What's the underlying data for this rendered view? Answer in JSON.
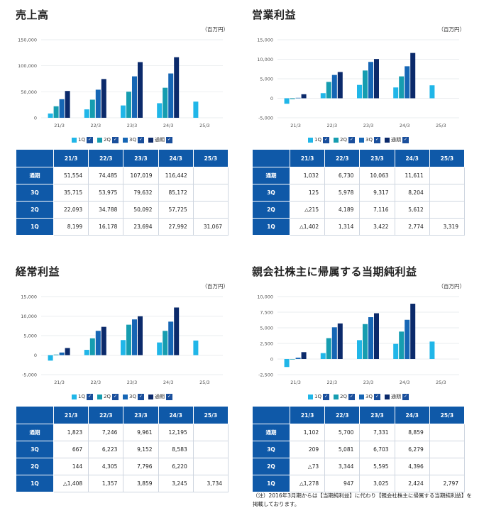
{
  "unit": "（百万円）",
  "legend": [
    "1Q",
    "2Q",
    "3Q",
    "通期"
  ],
  "series_colors": [
    "#20b6e8",
    "#169db0",
    "#1666b5",
    "#0b2a6b"
  ],
  "periods": [
    "21/3",
    "22/3",
    "23/3",
    "24/3",
    "25/3"
  ],
  "row_labels": [
    "通期",
    "3Q",
    "2Q",
    "1Q"
  ],
  "note": "（注）2016年3月期からは【当期純利益】に代わり【親会社株主に帰属する当期純利益】を掲載しております。",
  "chart_data": [
    {
      "type": "bar",
      "title": "売上高",
      "categories": [
        "21/3",
        "22/3",
        "23/3",
        "24/3",
        "25/3"
      ],
      "ylim": [
        0,
        150000
      ],
      "yticks": [
        0,
        50000,
        100000,
        150000
      ],
      "ytick_labels": [
        "0",
        "50,000",
        "100,000",
        "150,000"
      ],
      "series": [
        {
          "name": "1Q",
          "values": [
            8199,
            16178,
            23694,
            27992,
            31067
          ]
        },
        {
          "name": "2Q",
          "values": [
            22093,
            34788,
            50092,
            57725,
            null
          ]
        },
        {
          "name": "3Q",
          "values": [
            35715,
            53975,
            79632,
            85172,
            null
          ]
        },
        {
          "name": "通期",
          "values": [
            51554,
            74485,
            107019,
            116442,
            null
          ]
        }
      ],
      "table": [
        [
          "51,554",
          "74,485",
          "107,019",
          "116,442",
          ""
        ],
        [
          "35,715",
          "53,975",
          "79,632",
          "85,172",
          ""
        ],
        [
          "22,093",
          "34,788",
          "50,092",
          "57,725",
          ""
        ],
        [
          "8,199",
          "16,178",
          "23,694",
          "27,992",
          "31,067"
        ]
      ]
    },
    {
      "type": "bar",
      "title": "営業利益",
      "categories": [
        "21/3",
        "22/3",
        "23/3",
        "24/3",
        "25/3"
      ],
      "ylim": [
        -5000,
        15000
      ],
      "yticks": [
        -5000,
        0,
        5000,
        10000,
        15000
      ],
      "ytick_labels": [
        "-5,000",
        "0",
        "5,000",
        "10,000",
        "15,000"
      ],
      "series": [
        {
          "name": "1Q",
          "values": [
            -1402,
            1314,
            3422,
            2774,
            3319
          ]
        },
        {
          "name": "2Q",
          "values": [
            -215,
            4189,
            7116,
            5612,
            null
          ]
        },
        {
          "name": "3Q",
          "values": [
            125,
            5978,
            9317,
            8204,
            null
          ]
        },
        {
          "name": "通期",
          "values": [
            1032,
            6730,
            10063,
            11611,
            null
          ]
        }
      ],
      "table": [
        [
          "1,032",
          "6,730",
          "10,063",
          "11,611",
          ""
        ],
        [
          "125",
          "5,978",
          "9,317",
          "8,204",
          ""
        ],
        [
          "△215",
          "4,189",
          "7,116",
          "5,612",
          ""
        ],
        [
          "△1,402",
          "1,314",
          "3,422",
          "2,774",
          "3,319"
        ]
      ]
    },
    {
      "type": "bar",
      "title": "経常利益",
      "categories": [
        "21/3",
        "22/3",
        "23/3",
        "24/3",
        "25/3"
      ],
      "ylim": [
        -5000,
        15000
      ],
      "yticks": [
        -5000,
        0,
        5000,
        10000,
        15000
      ],
      "ytick_labels": [
        "-5,000",
        "0",
        "5,000",
        "10,000",
        "15,000"
      ],
      "series": [
        {
          "name": "1Q",
          "values": [
            -1408,
            1357,
            3859,
            3245,
            3734
          ]
        },
        {
          "name": "2Q",
          "values": [
            144,
            4305,
            7796,
            6220,
            null
          ]
        },
        {
          "name": "3Q",
          "values": [
            667,
            6223,
            9152,
            8583,
            null
          ]
        },
        {
          "name": "通期",
          "values": [
            1823,
            7246,
            9961,
            12195,
            null
          ]
        }
      ],
      "table": [
        [
          "1,823",
          "7,246",
          "9,961",
          "12,195",
          ""
        ],
        [
          "667",
          "6,223",
          "9,152",
          "8,583",
          ""
        ],
        [
          "144",
          "4,305",
          "7,796",
          "6,220",
          ""
        ],
        [
          "△1,408",
          "1,357",
          "3,859",
          "3,245",
          "3,734"
        ]
      ]
    },
    {
      "type": "bar",
      "title": "親会社株主に帰属する当期純利益",
      "categories": [
        "21/3",
        "22/3",
        "23/3",
        "24/3",
        "25/3"
      ],
      "ylim": [
        -2500,
        10000
      ],
      "yticks": [
        -2500,
        0,
        2500,
        5000,
        7500,
        10000
      ],
      "ytick_labels": [
        "-2,500",
        "0",
        "2,500",
        "5,000",
        "7,500",
        "10,000"
      ],
      "series": [
        {
          "name": "1Q",
          "values": [
            -1278,
            947,
            3025,
            2424,
            2797
          ]
        },
        {
          "name": "2Q",
          "values": [
            -73,
            3344,
            5595,
            4396,
            null
          ]
        },
        {
          "name": "3Q",
          "values": [
            209,
            5081,
            6703,
            6279,
            null
          ]
        },
        {
          "name": "通期",
          "values": [
            1102,
            5700,
            7331,
            8859,
            null
          ]
        }
      ],
      "table": [
        [
          "1,102",
          "5,700",
          "7,331",
          "8,859",
          ""
        ],
        [
          "209",
          "5,081",
          "6,703",
          "6,279",
          ""
        ],
        [
          "△73",
          "3,344",
          "5,595",
          "4,396",
          ""
        ],
        [
          "△1,278",
          "947",
          "3,025",
          "2,424",
          "2,797"
        ]
      ]
    }
  ]
}
